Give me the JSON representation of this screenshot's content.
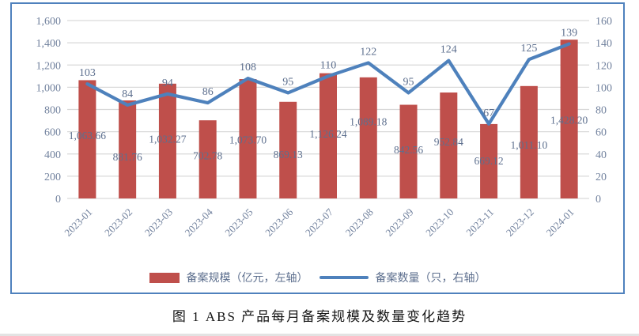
{
  "figure": {
    "caption": "图 1  ABS 产品每月备案规模及数量变化趋势"
  },
  "chart_data": {
    "type": "bar",
    "subtype": "combo-bar-line-dual-axis",
    "categories": [
      "2023-01",
      "2023-02",
      "2023-03",
      "2023-04",
      "2023-05",
      "2023-06",
      "2023-07",
      "2023-08",
      "2023-09",
      "2023-10",
      "2023-11",
      "2023-12",
      "2024-01"
    ],
    "series": [
      {
        "name": "备案规模（亿元，左轴）",
        "type": "bar",
        "axis": "left",
        "color": "#bf4f4b",
        "values": [
          1063.66,
          881.76,
          1032.27,
          702.78,
          1073.7,
          869.13,
          1126.24,
          1089.18,
          842.56,
          952.84,
          669.12,
          1011.1,
          1428.2
        ],
        "value_labels": [
          "1,063.66",
          "881.76",
          "1,032.27",
          "702.78",
          "1,073.70",
          "869.13",
          "1,126.24",
          "1,089.18",
          "842.56",
          "952.84",
          "669.12",
          "1,011.10",
          "1,428.20"
        ]
      },
      {
        "name": "备案数量（只，右轴）",
        "type": "line",
        "axis": "right",
        "color": "#4e81bc",
        "values": [
          103,
          84,
          94,
          86,
          108,
          95,
          110,
          122,
          95,
          124,
          67,
          125,
          139
        ],
        "value_labels": [
          "103",
          "84",
          "94",
          "86",
          "108",
          "95",
          "110",
          "122",
          "95",
          "124",
          "67",
          "125",
          "139"
        ]
      }
    ],
    "left_axis": {
      "min": 0,
      "max": 1600,
      "step": 200,
      "ticks": [
        "0",
        "200",
        "400",
        "600",
        "800",
        "1,000",
        "1,200",
        "1,400",
        "1,600"
      ]
    },
    "right_axis": {
      "min": 0,
      "max": 160,
      "step": 20,
      "ticks": [
        "0",
        "20",
        "40",
        "60",
        "80",
        "100",
        "120",
        "140",
        "160"
      ]
    },
    "grid": true,
    "legend_position": "bottom",
    "colors": {
      "bar": "#bf4f4b",
      "line": "#4e81bc",
      "gridline": "#d9d9d9",
      "tick_label": "#72829e",
      "data_label": "#5d6f8e",
      "frame_border": "#4f81bd"
    }
  }
}
